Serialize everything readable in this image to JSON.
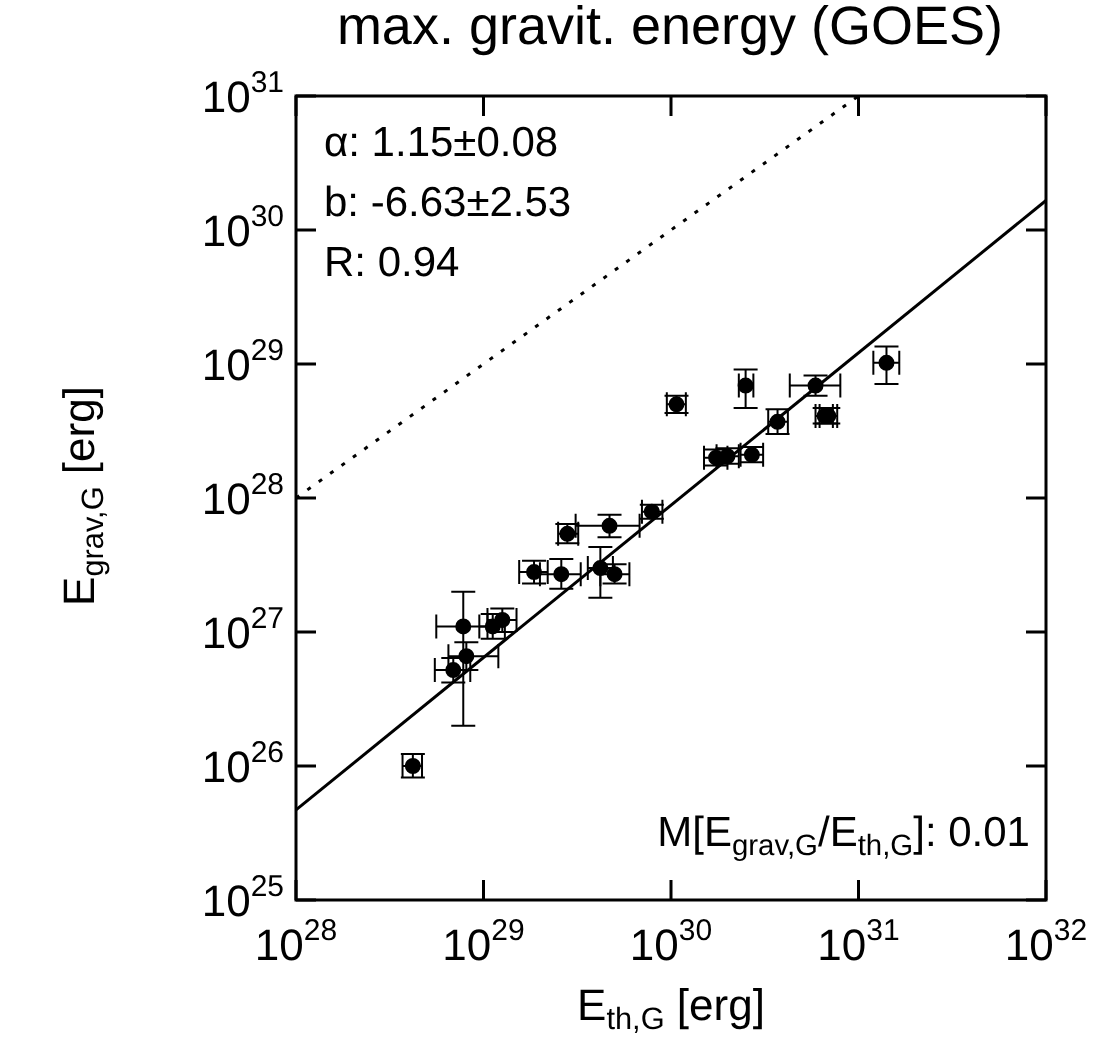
{
  "chart_data": {
    "type": "scatter",
    "title": "max. gravit. energy (GOES)",
    "xlabel": "E$_{th,G}$ [erg]",
    "ylabel": "E$_{grav,G}$ [erg]",
    "log": "xy",
    "grid": false,
    "legend": false,
    "xlim": [
      1e+28,
      1e+32
    ],
    "ylim": [
      1e+25,
      1e+31
    ],
    "xticks": [
      {
        "value": 1e+28,
        "label": "10$^{28}$"
      },
      {
        "value": 1e+29,
        "label": "10$^{29}$"
      },
      {
        "value": 1e+30,
        "label": "10$^{30}$"
      },
      {
        "value": 1e+31,
        "label": "10$^{31}$"
      },
      {
        "value": 1e+32,
        "label": "10$^{32}$"
      }
    ],
    "yticks": [
      {
        "value": 1e+25,
        "label": "10$^{25}$"
      },
      {
        "value": 1e+26,
        "label": "10$^{26}$"
      },
      {
        "value": 1e+27,
        "label": "10$^{27}$"
      },
      {
        "value": 1e+28,
        "label": "10$^{28}$"
      },
      {
        "value": 1e+29,
        "label": "10$^{29}$"
      },
      {
        "value": 1e+30,
        "label": "10$^{30}$"
      },
      {
        "value": 1e+31,
        "label": "10$^{31}$"
      }
    ],
    "annotations": [
      "α: 1.15±0.08",
      "b: -6.63±2.53",
      "R: 0.94",
      "M[E$_{grav,G}$/E$_{th,G}$]: 0.01"
    ],
    "series": [
      {
        "marker": "circle",
        "color": "#000000",
        "x": [
          4.2e+28,
          6.9e+28,
          8.1e+28,
          7.8e+28,
          1.12e+29,
          1.26e+29,
          1.86e+29,
          2.6e+29,
          2.8e+29,
          4.2e+29,
          4.7e+29,
          5e+29,
          7.9e+29,
          1.07e+30,
          1.74e+30,
          2e+30,
          2.7e+30,
          2.5e+30,
          3.7e+30,
          5.9e+30,
          6.6e+30,
          6.9e+30,
          1.41e+31
        ],
        "values": [
          1e+26,
          5.2e+26,
          6.6e+26,
          1.1e+27,
          1.1e+27,
          1.23e+27,
          2.8e+27,
          2.7e+27,
          5.4e+27,
          3e+27,
          6.2e+27,
          2.7e+27,
          7.9e+27,
          5e+28,
          2e+28,
          2.05e+28,
          2.1e+28,
          6.9e+28,
          3.7e+28,
          6.9e+28,
          4.1e+28,
          4.1e+28,
          1.02e+29
        ],
        "errors": [
          [
            8.2e+25,
            1.23e+26
          ],
          [
            4.2e+26,
            6.4e+26
          ],
          [
            5.2e+26,
            8.4e+26
          ],
          [
            2e+26,
            2e+27
          ],
          [
            8.9e+26,
            1.36e+27
          ],
          [
            1e+27,
            1.5e+27
          ],
          [
            2.3e+27,
            3.4e+27
          ],
          [
            2.1e+27,
            3.5e+27
          ],
          [
            4.6e+27,
            6.4e+27
          ],
          [
            1.8e+27,
            4.3e+27
          ],
          [
            5.1e+27,
            7.5e+27
          ],
          [
            2.3e+27,
            3.2e+27
          ],
          [
            7e+27,
            8.9e+27
          ],
          [
            4.3e+28,
            5.8e+28
          ],
          [
            1.75e+28,
            2.3e+28
          ],
          [
            1.8e+28,
            2.35e+28
          ],
          [
            1.85e+28,
            2.4e+28
          ],
          [
            4.7e+28,
            9.1e+28
          ],
          [
            3e+28,
            4.6e+28
          ],
          [
            5.8e+28,
            8.2e+28
          ],
          [
            3.6e+28,
            4.7e+28
          ],
          [
            3.6e+28,
            4.7e+28
          ],
          [
            7.1e+28,
            1.35e+29
          ]
        ],
        "xerrors": [
          [
            3.7e+28,
            4.7e+28
          ],
          [
            5.5e+28,
            8.5e+28
          ],
          [
            6.5e+28,
            1.2e+29
          ],
          [
            5.6e+28,
            1.05e+29
          ],
          [
            9.5e+28,
            1.3e+29
          ],
          [
            1.05e+29,
            1.5e+29
          ],
          [
            1.55e+29,
            2.2e+29
          ],
          [
            2e+29,
            3.3e+29
          ],
          [
            2.5e+29,
            3.2e+29
          ],
          [
            3.6e+29,
            4.9e+29
          ],
          [
            3.1e+29,
            6.8e+29
          ],
          [
            4.2e+29,
            6e+29
          ],
          [
            7e+29,
            9e+29
          ],
          [
            9.5e+29,
            1.2e+30
          ],
          [
            1.5e+30,
            2e+30
          ],
          [
            1.75e+30,
            2.3e+30
          ],
          [
            2.35e+30,
            3.1e+30
          ],
          [
            2.3e+30,
            2.75e+30
          ],
          [
            3.3e+30,
            4.2e+30
          ],
          [
            4.3e+30,
            8e+30
          ],
          [
            5.9e+30,
            7.3e+30
          ],
          [
            6.2e+30,
            7.7e+30
          ],
          [
            1.2e+31,
            1.65e+31
          ]
        ]
      },
      {
        "type": "line",
        "color": "#000000",
        "line_style": "solid",
        "x": [
          1e+28,
          1e+32
        ],
        "values": [
          4.7e+25,
          1.66e+30
        ]
      },
      {
        "type": "line",
        "color": "#000000",
        "line_style": "dotted",
        "x": [
          1e+28,
          1e+31
        ],
        "values": [
          1e+28,
          1e+31
        ]
      }
    ]
  }
}
